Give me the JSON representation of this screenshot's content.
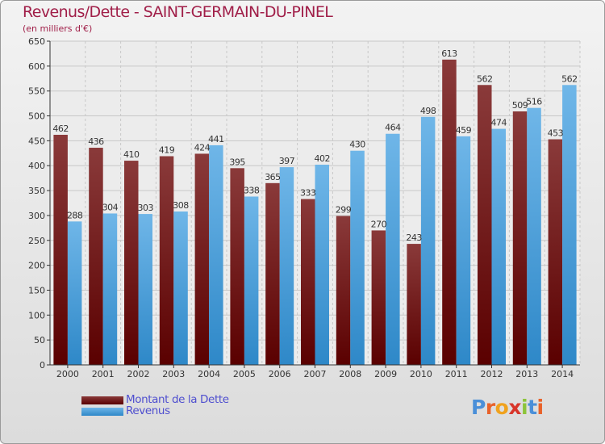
{
  "title": "Revenus/Dette - SAINT-GERMAIN-DU-PINEL",
  "subtitle": "(en milliers d'€)",
  "logo_text": "Proxiti",
  "colors": {
    "title": "#a01e48",
    "debt_dark": "#5a0000",
    "debt_light": "#8a3a3a",
    "revenue_dark": "#2e88c8",
    "revenue_light": "#6fb6e8",
    "legend_text": "#4f4fcf"
  },
  "chart_data": {
    "type": "bar",
    "categories": [
      "2000",
      "2001",
      "2002",
      "2003",
      "2004",
      "2005",
      "2006",
      "2007",
      "2008",
      "2009",
      "2010",
      "2011",
      "2012",
      "2013",
      "2014"
    ],
    "series": [
      {
        "name": "Montant de la Dette",
        "values": [
          462,
          436,
          410,
          419,
          424,
          395,
          365,
          333,
          299,
          270,
          243,
          613,
          562,
          509,
          453
        ]
      },
      {
        "name": "Revenus",
        "values": [
          288,
          304,
          303,
          308,
          441,
          338,
          397,
          402,
          430,
          464,
          498,
          459,
          474,
          516,
          562
        ]
      }
    ],
    "ylim": [
      0,
      650
    ],
    "yticks": [
      0,
      50,
      100,
      150,
      200,
      250,
      300,
      350,
      400,
      450,
      500,
      550,
      600,
      650
    ],
    "grid": true,
    "legend_position": "bottom-left"
  }
}
